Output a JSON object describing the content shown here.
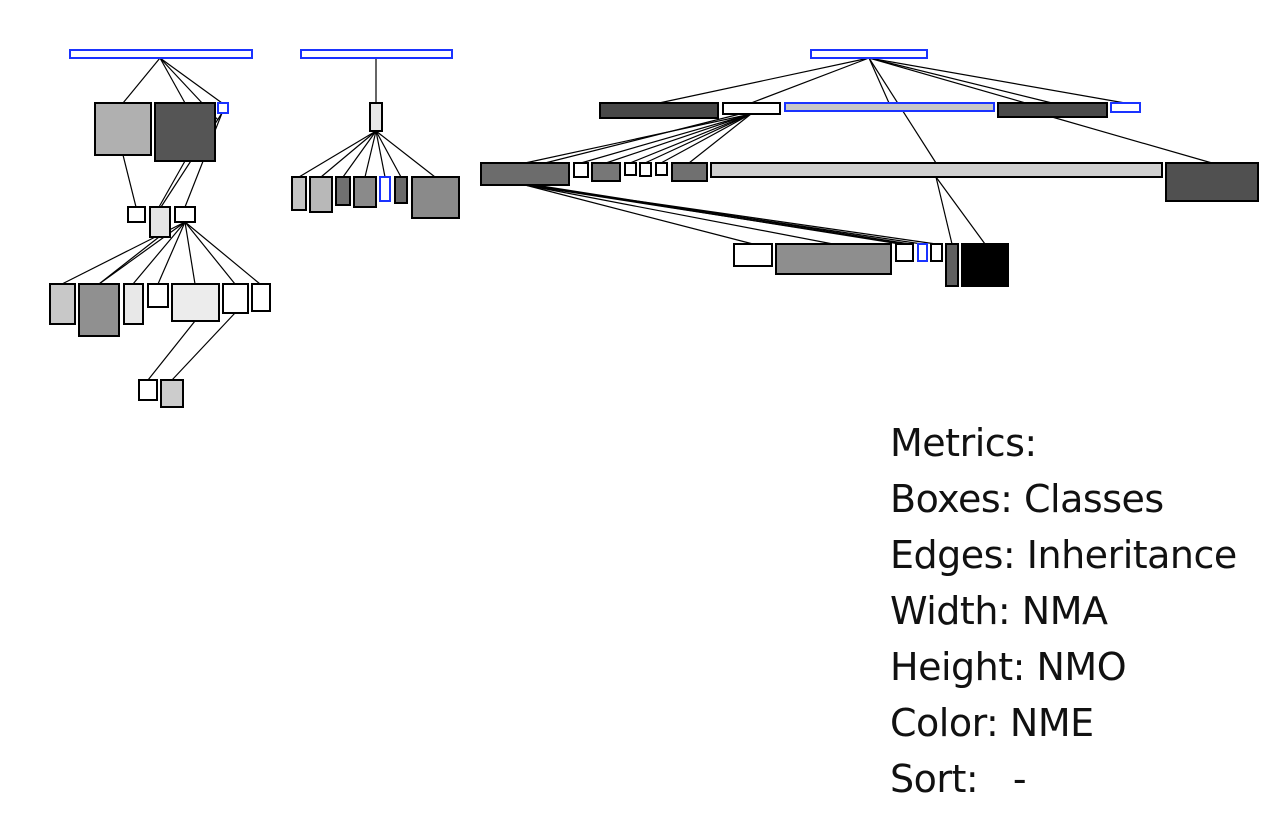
{
  "legend": {
    "title": "Metrics:",
    "boxes": "Boxes: Classes",
    "edges": "Edges: Inheritance",
    "width": "Width: NMA",
    "height": "Height: NMO",
    "color": "Color: NME",
    "sort": "Sort:   -"
  },
  "colors": {
    "interface_stroke": "#1a33ff",
    "class_stroke": "#000000",
    "edge": "#000000",
    "background": "#ffffff"
  }
}
